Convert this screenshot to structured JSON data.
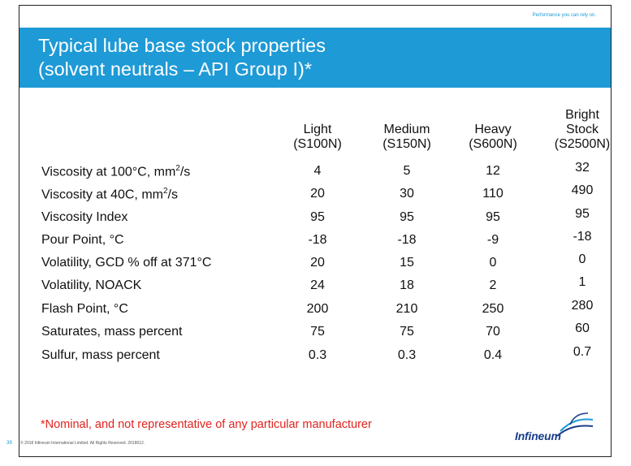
{
  "slide": {
    "tagline": "Performance you can rely on.",
    "title_line1": "Typical lube base stock properties",
    "title_line2": "(solvent neutrals – API Group I)*",
    "page_number": "39",
    "copyright": "© 2018 Infineum International Limited. All Rights Reserved. 2018012.",
    "note": "*Nominal, and not representative of any particular manufacturer",
    "logo_text": "Infineum",
    "brand_color": "#1e9ad6"
  },
  "table": {
    "columns": [
      {
        "lines": [
          "Light",
          "(S100N)"
        ]
      },
      {
        "lines": [
          "Medium",
          "(S150N)"
        ]
      },
      {
        "lines": [
          "Heavy",
          "(S600N)"
        ]
      },
      {
        "lines": [
          "Bright",
          "Stock",
          "(S2500N)"
        ]
      }
    ],
    "rows": [
      {
        "label": "Viscosity at 100°C, mm",
        "sup": "2",
        "suffix": "/s",
        "values": [
          "4",
          "5",
          "12",
          "32"
        ]
      },
      {
        "label": "Viscosity at 40C, mm",
        "sup": "2",
        "suffix": "/s",
        "values": [
          "20",
          "30",
          "110",
          "490"
        ]
      },
      {
        "label": "Viscosity Index",
        "values": [
          "95",
          "95",
          "95",
          "95"
        ]
      },
      {
        "label": "Pour Point, °C",
        "values": [
          "-18",
          "-18",
          "-9",
          "-18"
        ]
      },
      {
        "label": "Volatility, GCD % off at 371°C",
        "values": [
          "20",
          "15",
          "0",
          "0"
        ]
      },
      {
        "label": "Volatility, NOACK",
        "values": [
          "24",
          "18",
          "2",
          "1"
        ]
      },
      {
        "label": "Flash Point, °C",
        "values": [
          "200",
          "210",
          "250",
          "280"
        ]
      },
      {
        "label": "Saturates, mass percent",
        "values": [
          "75",
          "75",
          "70",
          "60"
        ]
      },
      {
        "label": "Sulfur, mass percent",
        "values": [
          "0.3",
          "0.3",
          "0.4",
          "0.7"
        ]
      }
    ]
  }
}
